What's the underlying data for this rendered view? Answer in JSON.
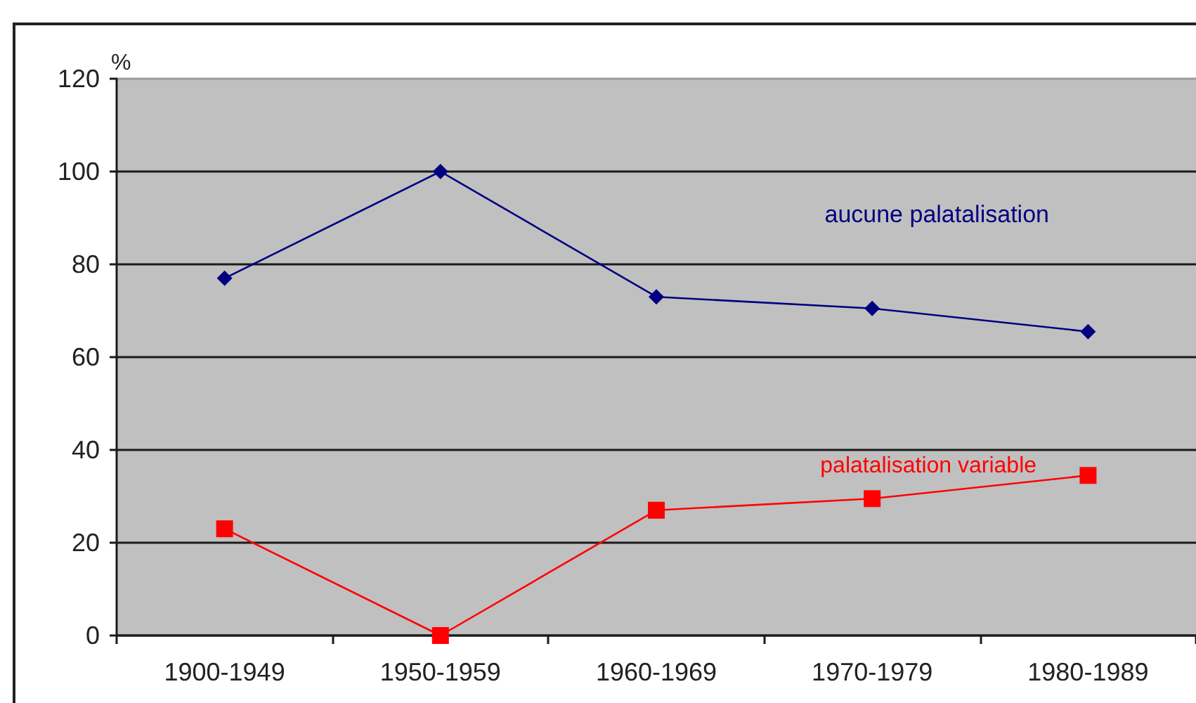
{
  "chart_data": {
    "type": "line",
    "ylabel": "%",
    "categories": [
      "1900-1949",
      "1950-1959",
      "1960-1969",
      "1970-1979",
      "1980-1989"
    ],
    "series": [
      {
        "name": "aucune palatalisation",
        "color": "#000080",
        "marker": "diamond",
        "values": [
          77,
          100,
          73,
          70.5,
          65.5
        ]
      },
      {
        "name": "palatalisation variable",
        "color": "#ff0000",
        "marker": "square",
        "values": [
          23,
          0,
          27,
          29.5,
          34.5
        ]
      }
    ],
    "ylim": [
      0,
      120
    ],
    "yticks": [
      0,
      20,
      40,
      60,
      80,
      100,
      120
    ],
    "grid": "y",
    "legend": false,
    "line_style": "solid"
  }
}
